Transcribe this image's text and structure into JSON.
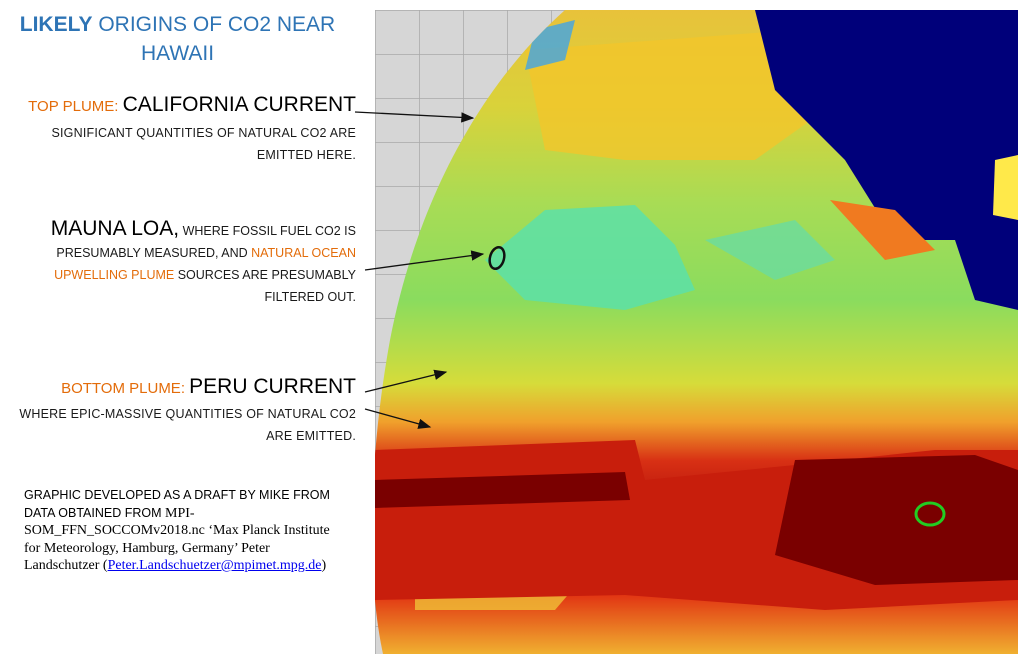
{
  "title": {
    "bold": "LIKELY",
    "rest": " ORIGINS OF CO2 NEAR HAWAII"
  },
  "top_plume": {
    "label": "TOP PLUME: ",
    "name": "CALIFORNIA CURRENT",
    "desc": "SIGNIFICANT QUANTITIES OF NATURAL CO2 ARE EMITTED HERE."
  },
  "mauna_loa": {
    "name": "MAUNA LOA,",
    "text1": " WHERE FOSSIL FUEL CO2 IS PRESUMABLY MEASURED, AND ",
    "highlight": "NATURAL OCEAN UPWELLING PLUME",
    "text2": " SOURCES ARE PRESUMABLY FILTERED OUT."
  },
  "bottom_plume": {
    "label": "BOTTOM PLUME: ",
    "name": "PERU CURRENT",
    "desc": "WHERE EPIC-MASSIVE QUANTITIES OF NATURAL CO2 ARE EMITTED."
  },
  "credit": {
    "line1": "GRAPHIC DEVELOPED AS A DRAFT BY MIKE FROM DATA OBTAINED FROM",
    "line2": " MPI-SOM_FFN_SOCCOMv2018.nc ‘Max Planck Institute for Meteorology, Hamburg, Germany’ Peter Landschutzer (",
    "email": "Peter.Landschuetzer@mpimet.mpg.de",
    "close": ")"
  },
  "colors": {
    "title_blue": "#2e74b5",
    "orange": "#e36c0a",
    "deep_red": "#7a0000",
    "land_blue": "#00007a",
    "ocean_green": "#5fdc88"
  }
}
